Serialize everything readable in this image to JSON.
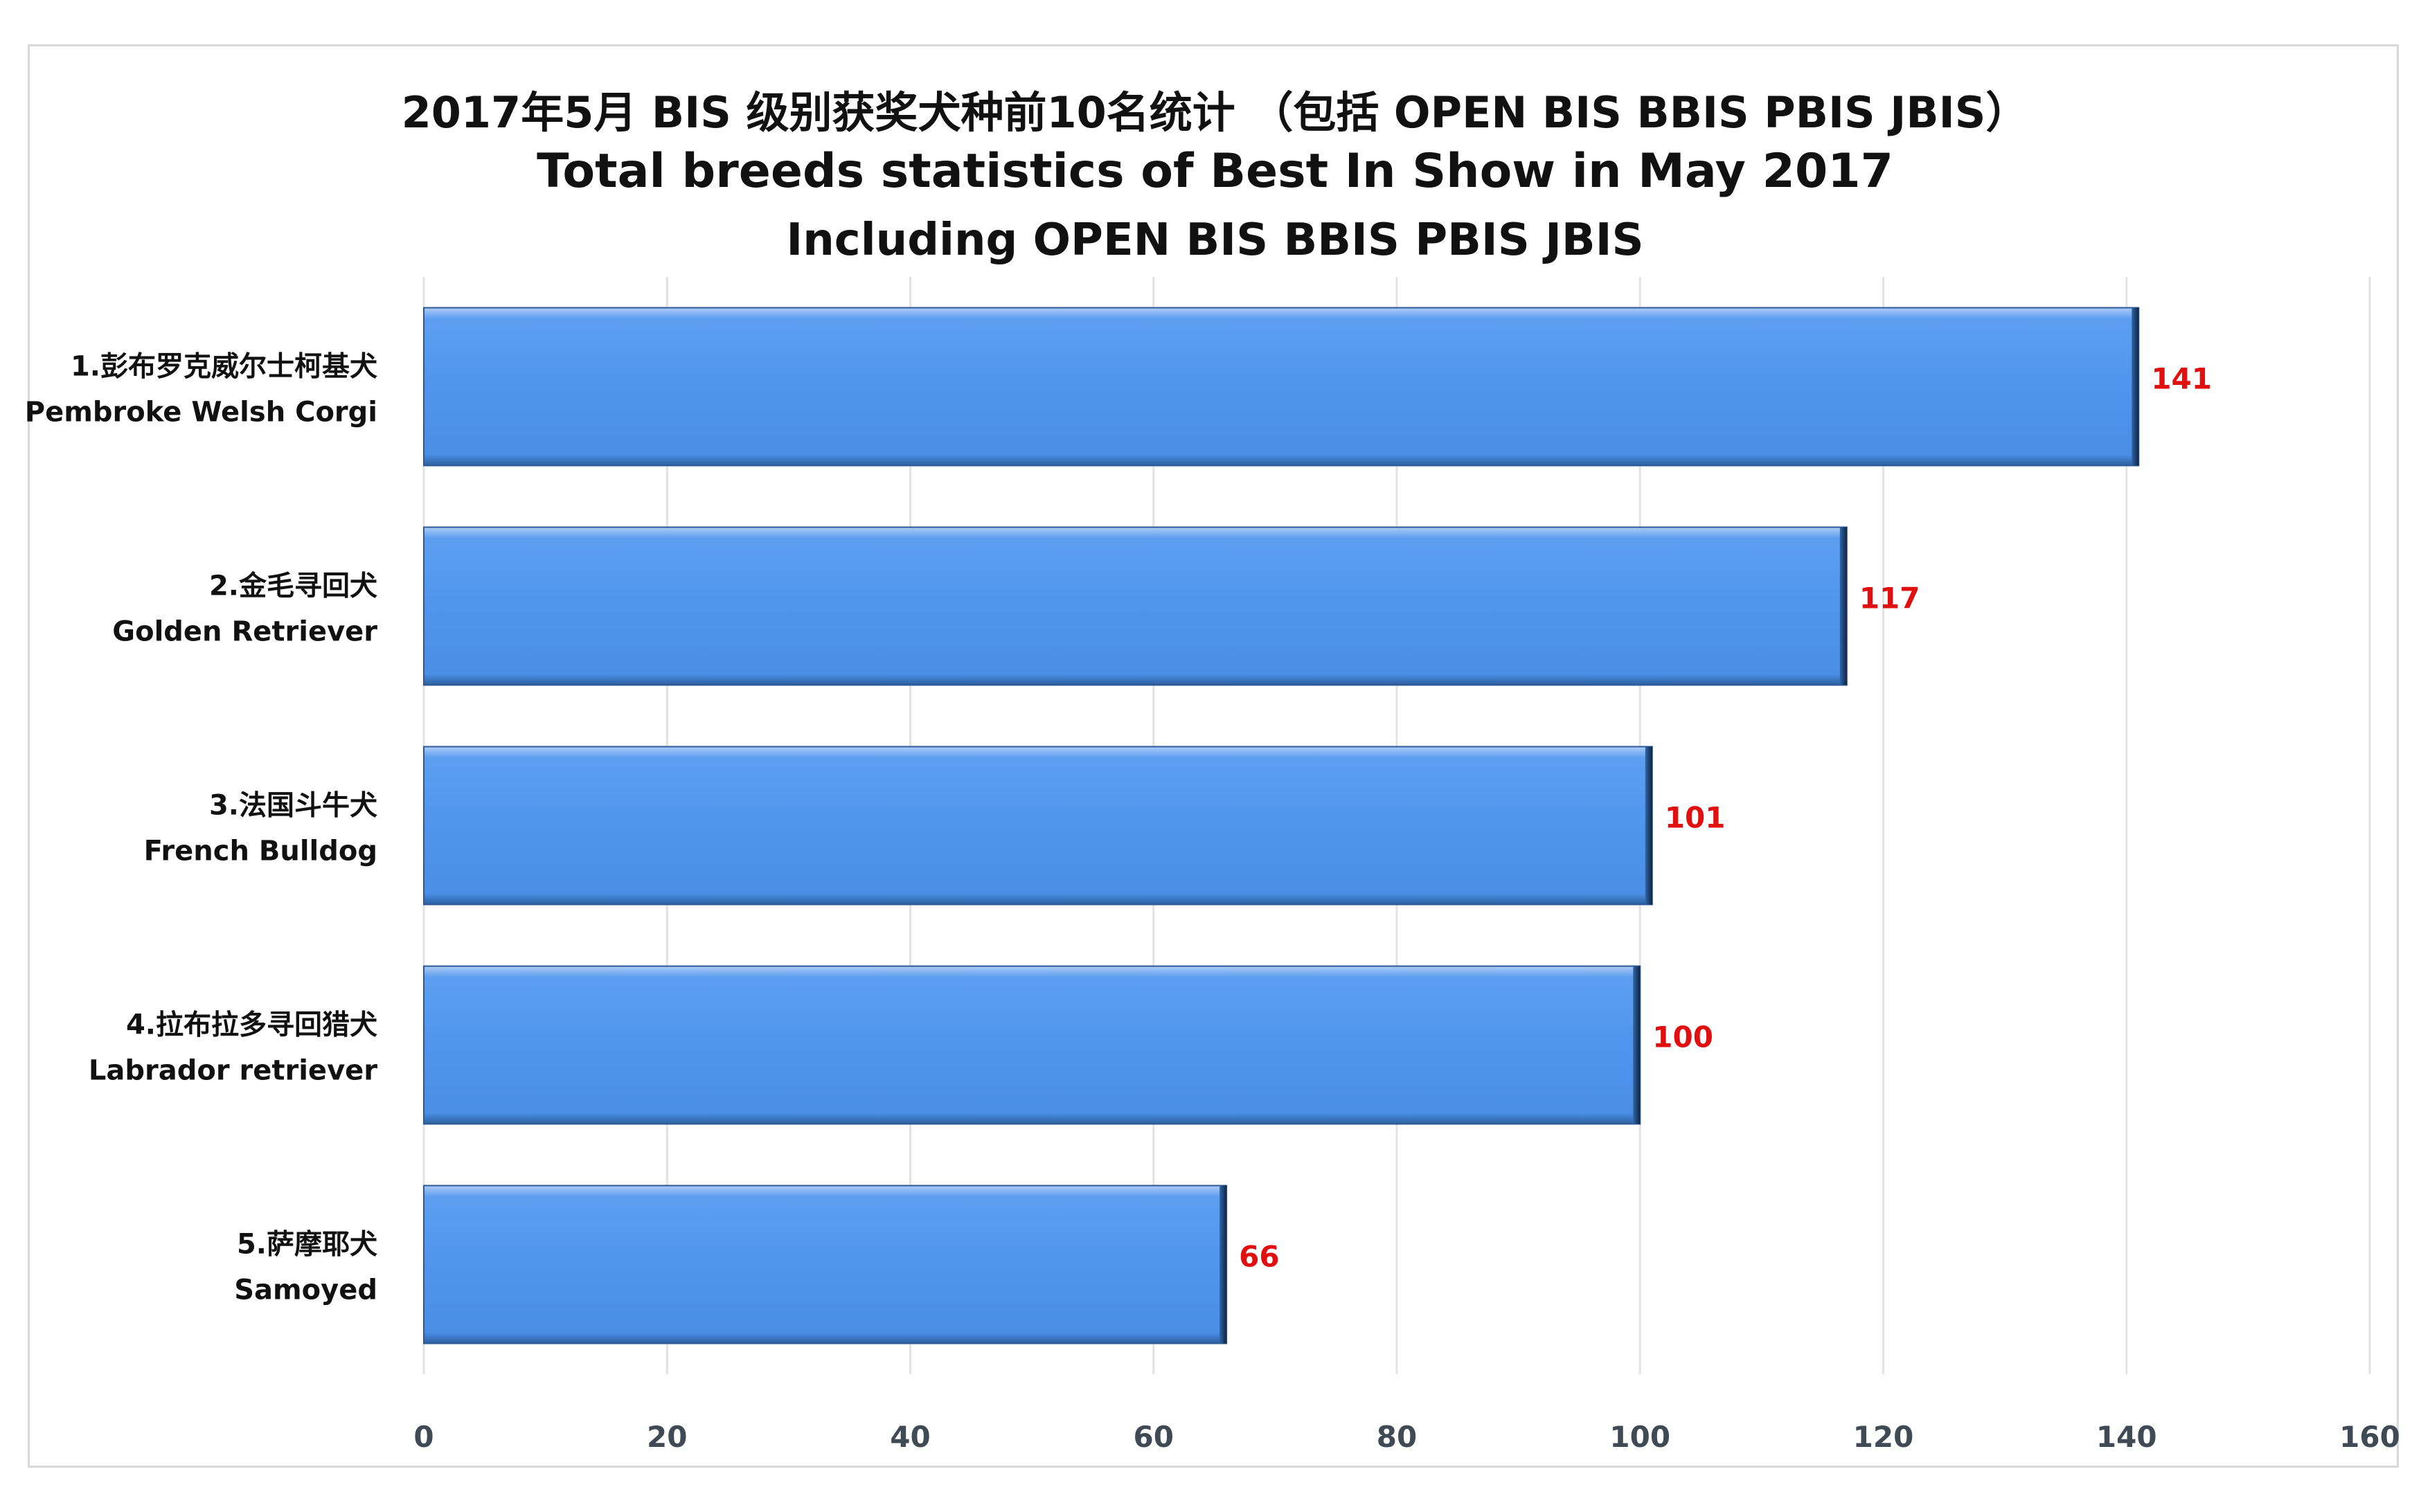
{
  "title_lines": [
    "2017年5月 BIS 级别获奖犬种前10名统计 （包括 OPEN BIS BBIS PBIS JBIS）",
    "Total breeds statistics of Best In Show in May 2017",
    "Including OPEN BIS BBIS PBIS JBIS"
  ],
  "chart_data": {
    "type": "bar",
    "orientation": "horizontal",
    "categories": [
      [
        "1.彭布罗克威尔士柯基犬",
        "Pembroke Welsh Corgi"
      ],
      [
        "2.金毛寻回犬",
        "Golden Retriever"
      ],
      [
        "3.法国斗牛犬",
        "French Bulldog"
      ],
      [
        "4.拉布拉多寻回猎犬",
        "Labrador retriever"
      ],
      [
        "5.萨摩耶犬",
        "Samoyed"
      ]
    ],
    "values": [
      141,
      117,
      101,
      100,
      66
    ],
    "xlim": [
      0,
      160
    ],
    "xticks": [
      0,
      20,
      40,
      60,
      80,
      100,
      120,
      140,
      160
    ],
    "grid": "vertical",
    "legend": "none",
    "colors": {
      "bar": "#4f95ee",
      "bar_edge": "#1f3d66",
      "value_label": "#e01010",
      "gridline": "#e3e3e3",
      "tick_label": "#3f4a55"
    }
  }
}
